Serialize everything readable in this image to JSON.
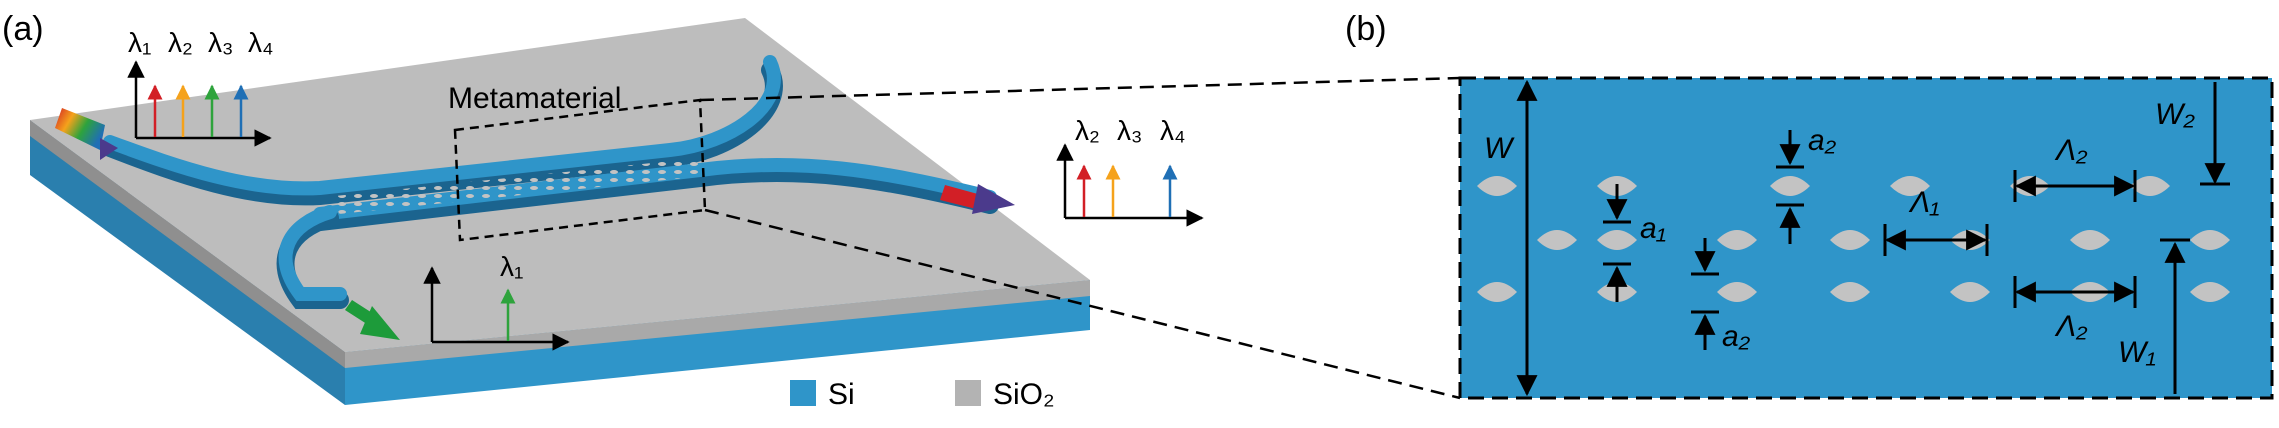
{
  "panels": {
    "a": {
      "label": "(a)",
      "region_label": "Metamaterial",
      "input_spectrum": [
        "λ₁",
        "λ₂",
        "λ₃",
        "λ₄"
      ],
      "through_spectrum": [
        "λ₂",
        "λ₃",
        "λ₄"
      ],
      "drop_spectrum": [
        "λ₁"
      ]
    },
    "b": {
      "label": "(b)",
      "dims": {
        "W": "W",
        "W1": "W₁",
        "W2": "W₂",
        "a1": "a₁",
        "a2_top": "a₂",
        "a2_bottom": "a₂",
        "lambda1": "Λ₁",
        "lambda2_top": "Λ₂",
        "lambda2_bottom": "Λ₂"
      }
    }
  },
  "legend": [
    {
      "label": "Si",
      "color": "#2f95c9"
    },
    {
      "label": "SiO₂",
      "color": "#b3b3b3"
    }
  ],
  "colors": {
    "si": "#2f95c9",
    "si_dark": "#1f6f9c",
    "oxide_top": "#bdbdbd",
    "oxide_side": "#8c8c8c",
    "hole": "#c3c3c3",
    "lambda1": "#2ea33c",
    "lambda2": "#d21f26",
    "lambda3": "#f5a21b",
    "lambda4": "#1f6fb5"
  }
}
